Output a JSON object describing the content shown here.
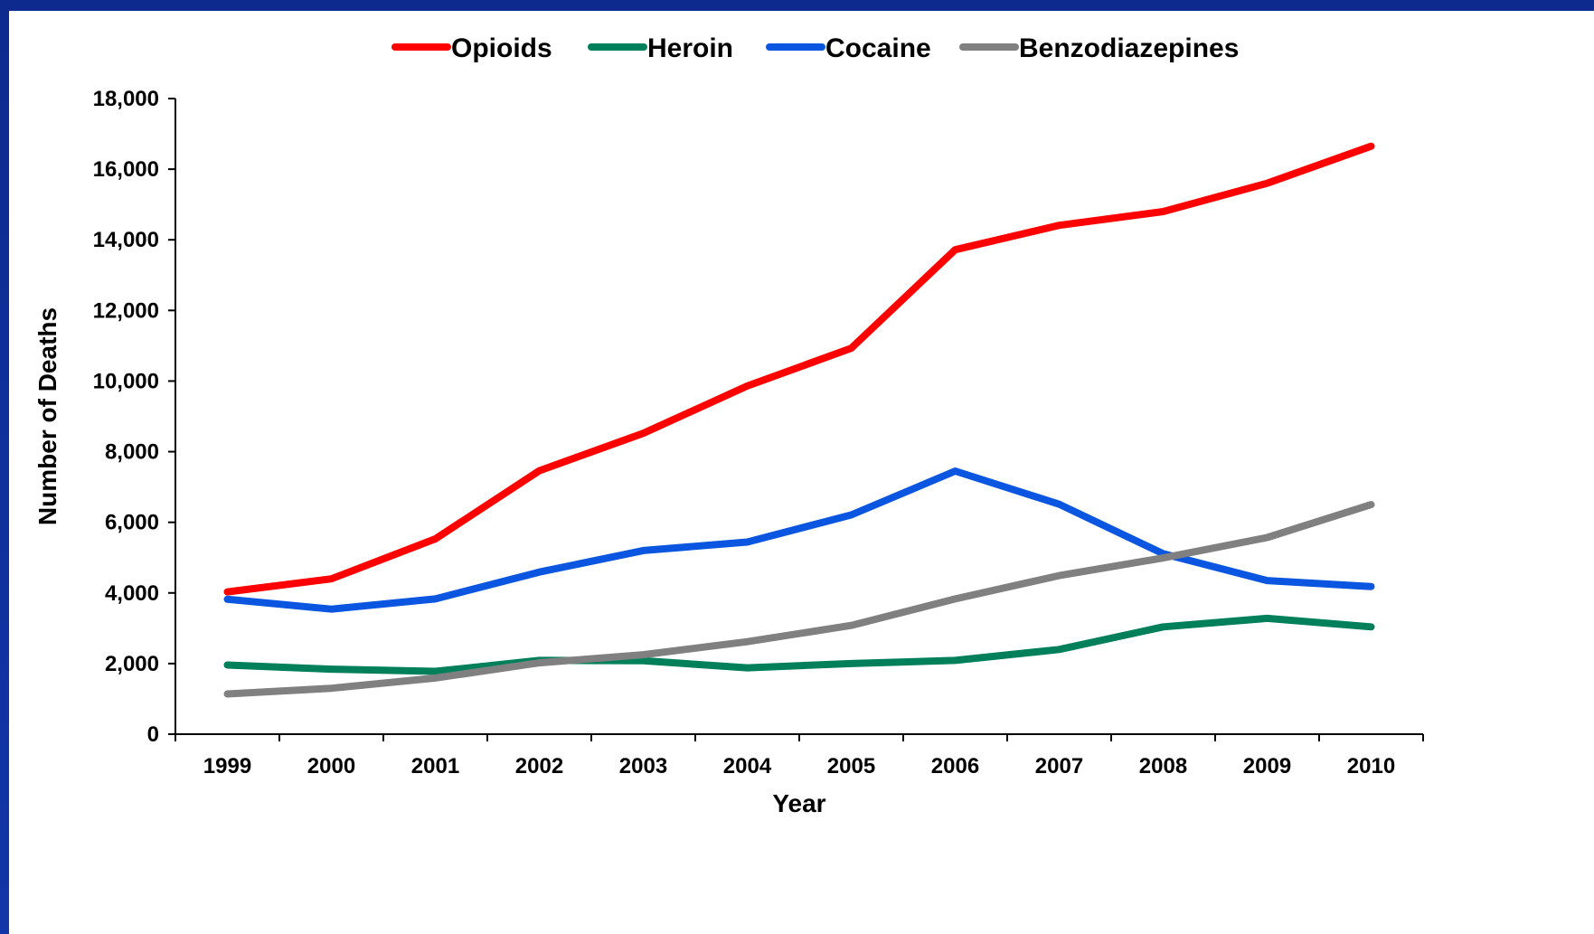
{
  "chart_data": {
    "type": "line",
    "title": "",
    "xlabel": "Year",
    "ylabel": "Number of Deaths",
    "x": [
      "1999",
      "2000",
      "2001",
      "2002",
      "2003",
      "2004",
      "2005",
      "2006",
      "2007",
      "2008",
      "2009",
      "2010"
    ],
    "ylim": [
      0,
      18000
    ],
    "yticks": [
      0,
      2000,
      4000,
      6000,
      8000,
      10000,
      12000,
      14000,
      16000,
      18000
    ],
    "ytick_labels": [
      "0",
      "2,000",
      "4,000",
      "6,000",
      "8,000",
      "10,000",
      "12,000",
      "14,000",
      "16,000",
      "18,000"
    ],
    "legend_position": "top-center",
    "grid": false,
    "series": [
      {
        "name": "Opioids",
        "color": "#ff0000",
        "values": [
          4030,
          4400,
          5530,
          7460,
          8520,
          9860,
          10930,
          13720,
          14410,
          14800,
          15600,
          16650
        ]
      },
      {
        "name": "Heroin",
        "color": "#00805a",
        "values": [
          1960,
          1840,
          1780,
          2090,
          2080,
          1880,
          2000,
          2090,
          2400,
          3040,
          3280,
          3040
        ]
      },
      {
        "name": "Cocaine",
        "color": "#0b56e0",
        "values": [
          3820,
          3540,
          3830,
          4590,
          5200,
          5440,
          6210,
          7450,
          6510,
          5110,
          4350,
          4180
        ]
      },
      {
        "name": "Benzodiazepines",
        "color": "#808080",
        "values": [
          1140,
          1300,
          1590,
          2020,
          2250,
          2620,
          3080,
          3830,
          4490,
          4990,
          5570,
          6500
        ]
      }
    ]
  }
}
